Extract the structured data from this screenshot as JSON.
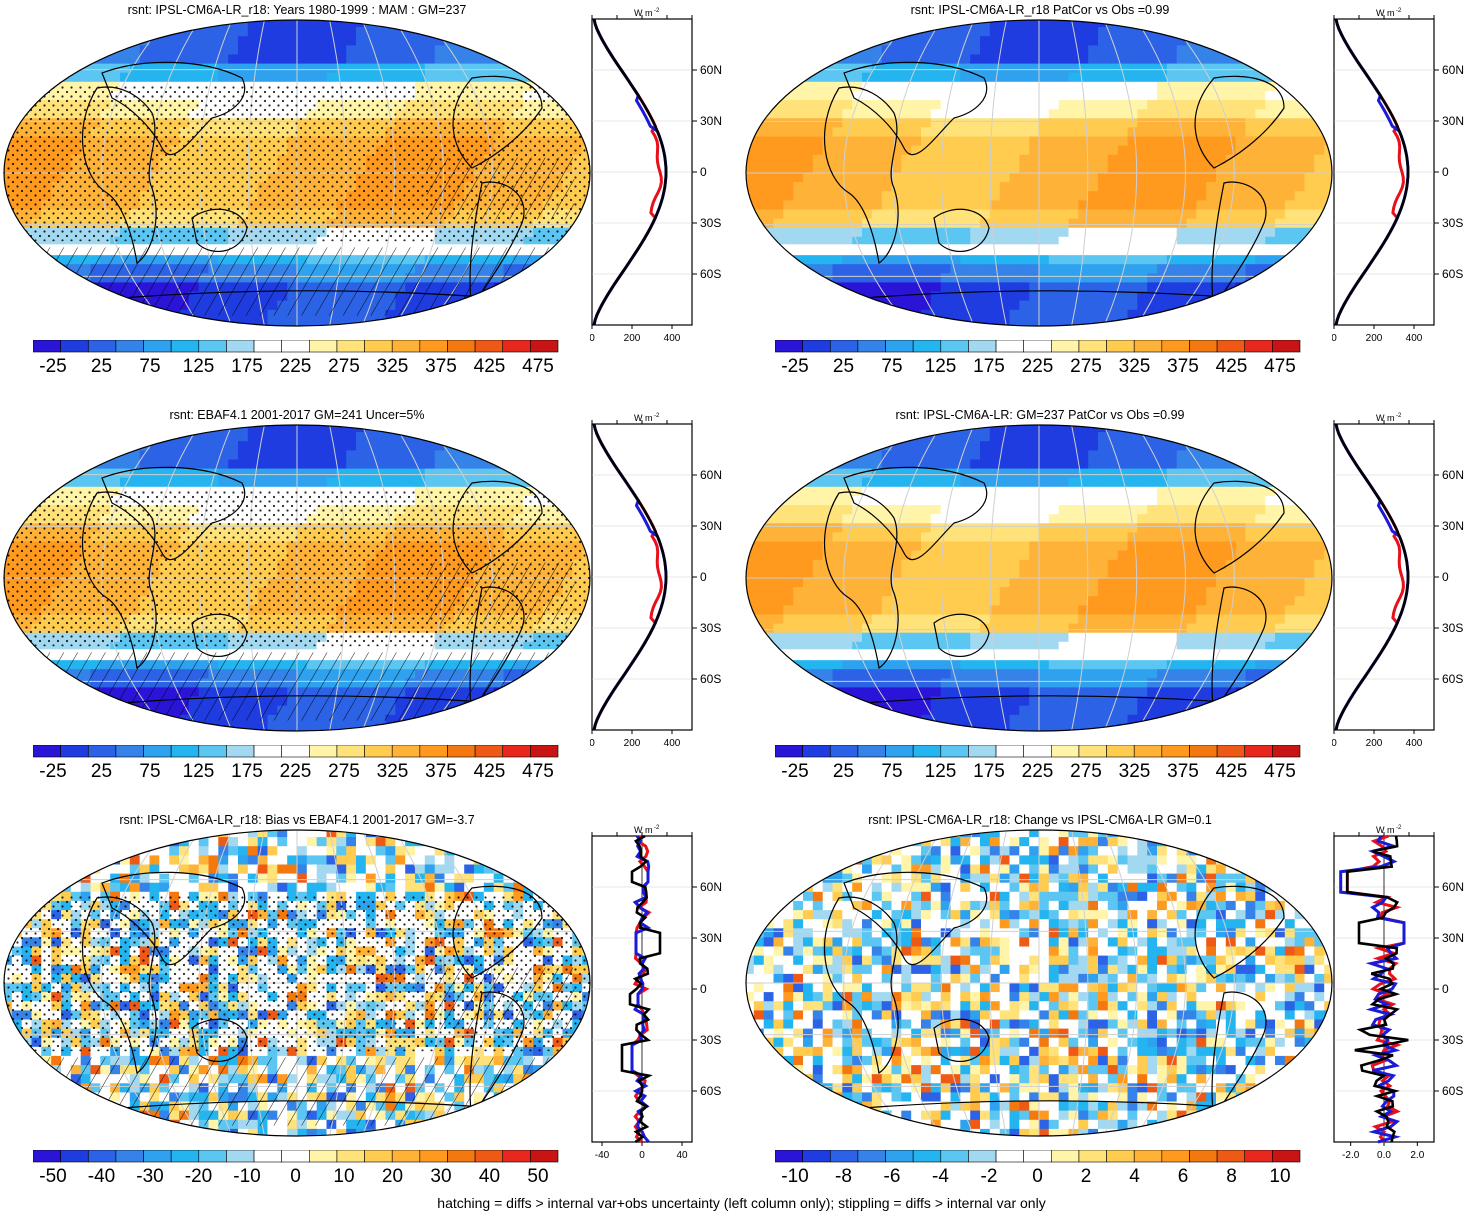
{
  "footer": "hatching = diffs > internal var+obs uncertainty (left column only); stippling = diffs > internal var only",
  "units_label": "W m",
  "units_exp": "-2",
  "colors": {
    "abs_scale": [
      "#2a14d8",
      "#1e3ce0",
      "#2c62e6",
      "#3582e8",
      "#2ea2ee",
      "#24b4f0",
      "#5cc6f2",
      "#a2d8f0",
      "#ffffff",
      "#ffffff",
      "#fff4a8",
      "#ffe27a",
      "#ffcc50",
      "#ffb238",
      "#ff9a1e",
      "#f47810",
      "#ee5a16",
      "#e8281c",
      "#c81414"
    ],
    "diff_scale": [
      "#2a14d8",
      "#1e3ce0",
      "#2c62e6",
      "#3582e8",
      "#2ea2ee",
      "#24b4f0",
      "#5cc6f2",
      "#a2d8f0",
      "#ffffff",
      "#ffffff",
      "#fff4a8",
      "#ffe27a",
      "#ffcc50",
      "#ffb238",
      "#ff9a1e",
      "#f47810",
      "#ee5a16",
      "#e8281c",
      "#c81414"
    ],
    "model_line": "#e8101a",
    "obs_line": "#1a1ad8",
    "mean_line": "#000000"
  },
  "panels": [
    {
      "id": "p1",
      "title": "rsnt: IPSL-CM6A-LR_r18: Years 1980-1999 : MAM : GM=237",
      "kind": "abs",
      "hatch": true,
      "cbar_labels": [
        "-25",
        "25",
        "75",
        "125",
        "175",
        "225",
        "275",
        "325",
        "375",
        "425",
        "475"
      ],
      "zonal": {
        "lat_labels": [
          "60N",
          "30N",
          "0",
          "30S",
          "60S"
        ],
        "x_ticks": [
          "0",
          "200",
          "400"
        ],
        "xmin": 0,
        "xmax": 500
      }
    },
    {
      "id": "p2",
      "title": "rsnt: IPSL-CM6A-LR_r18 PatCor vs Obs =0.99",
      "kind": "abs",
      "hatch": false,
      "cbar_labels": [
        "-25",
        "25",
        "75",
        "125",
        "175",
        "225",
        "275",
        "325",
        "375",
        "425",
        "475"
      ],
      "zonal": {
        "lat_labels": [
          "60N",
          "30N",
          "0",
          "30S",
          "60S"
        ],
        "x_ticks": [
          "0",
          "200",
          "400"
        ],
        "xmin": 0,
        "xmax": 500
      }
    },
    {
      "id": "p3",
      "title": "rsnt: EBAF4.1 2001-2017 GM=241 Uncer=5%",
      "kind": "abs",
      "hatch": true,
      "cbar_labels": [
        "-25",
        "25",
        "75",
        "125",
        "175",
        "225",
        "275",
        "325",
        "375",
        "425",
        "475"
      ],
      "zonal": {
        "lat_labels": [
          "60N",
          "30N",
          "0",
          "30S",
          "60S"
        ],
        "x_ticks": [
          "0",
          "200",
          "400"
        ],
        "xmin": 0,
        "xmax": 500
      }
    },
    {
      "id": "p4",
      "title": "rsnt: IPSL-CM6A-LR: GM=237 PatCor vs Obs =0.99",
      "kind": "abs",
      "hatch": false,
      "cbar_labels": [
        "-25",
        "25",
        "75",
        "125",
        "175",
        "225",
        "275",
        "325",
        "375",
        "425",
        "475"
      ],
      "zonal": {
        "lat_labels": [
          "60N",
          "30N",
          "0",
          "30S",
          "60S"
        ],
        "x_ticks": [
          "0",
          "200",
          "400"
        ],
        "xmin": 0,
        "xmax": 500
      }
    },
    {
      "id": "p5",
      "title": "rsnt: IPSL-CM6A-LR_r18: Bias vs EBAF4.1 2001-2017 GM=-3.7",
      "kind": "bias",
      "hatch": true,
      "cbar_labels": [
        "-50",
        "-40",
        "-30",
        "-20",
        "-10",
        "0",
        "10",
        "20",
        "30",
        "40",
        "50"
      ],
      "zonal": {
        "lat_labels": [
          "60N",
          "30N",
          "0",
          "30S",
          "60S"
        ],
        "x_ticks": [
          "-40",
          "0",
          "40"
        ],
        "xmin": -50,
        "xmax": 50
      }
    },
    {
      "id": "p6",
      "title": "rsnt: IPSL-CM6A-LR_r18: Change vs IPSL-CM6A-LR GM=0.1",
      "kind": "change",
      "hatch": false,
      "cbar_labels": [
        "-10",
        "-8",
        "-6",
        "-4",
        "-2",
        "0",
        "2",
        "4",
        "6",
        "8",
        "10"
      ],
      "zonal": {
        "lat_labels": [
          "60N",
          "30N",
          "0",
          "30S",
          "60S"
        ],
        "x_ticks": [
          "-2.0",
          "0.0",
          "2.0"
        ],
        "xmin": -3,
        "xmax": 3
      }
    }
  ]
}
